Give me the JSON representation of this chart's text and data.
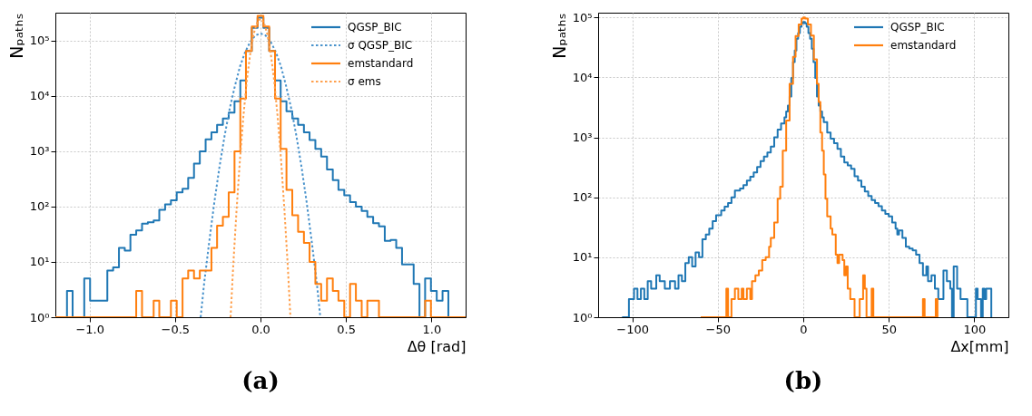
{
  "chart_data": [
    {
      "type": "histogram",
      "title": "(a)",
      "xlabel": "Δθ  [rad]",
      "ylabel": "Nₚₐₜₕₛ",
      "log": true,
      "grid": true,
      "legend": "top right",
      "xlim": [
        -1.2,
        1.2
      ],
      "xticks": [
        {
          "value": -1,
          "label": "−1.0"
        },
        {
          "value": -0.5,
          "label": "−0.5"
        },
        {
          "value": 0,
          "label": "0.0"
        },
        0.5,
        {
          "value": 1,
          "label": "1.0"
        }
      ],
      "ylim": [
        1,
        320000
      ],
      "yticks": [
        {
          "value": 1,
          "label": "10⁰"
        },
        {
          "value": 10,
          "label": "10¹"
        },
        {
          "value": 100,
          "label": "10²"
        },
        {
          "value": 1000,
          "label": "10³"
        },
        {
          "value": 10000,
          "label": "10⁴"
        },
        {
          "value": 100000,
          "label": "10⁵"
        }
      ],
      "bins": [
        -1.2,
        -1.166,
        -1.132,
        -1.099,
        -1.065,
        -1.031,
        -0.997,
        -0.963,
        -0.93,
        -0.896,
        -0.862,
        -0.828,
        -0.794,
        -0.761,
        -0.727,
        -0.693,
        -0.659,
        -0.625,
        -0.592,
        -0.558,
        -0.524,
        -0.49,
        -0.456,
        -0.423,
        -0.389,
        -0.355,
        -0.321,
        -0.287,
        -0.254,
        -0.22,
        -0.186,
        -0.152,
        -0.118,
        -0.085,
        -0.051,
        -0.017,
        0.017,
        0.051,
        0.085,
        0.118,
        0.152,
        0.186,
        0.22,
        0.254,
        0.287,
        0.321,
        0.355,
        0.389,
        0.423,
        0.456,
        0.49,
        0.524,
        0.558,
        0.592,
        0.625,
        0.659,
        0.693,
        0.727,
        0.761,
        0.794,
        0.828,
        0.862,
        0.896,
        0.93,
        0.963,
        0.997,
        1.031,
        1.065,
        1.099,
        1.132,
        1.166,
        1.2
      ],
      "series": [
        {
          "name": "QGSP_BIC",
          "color": "#1f77b4",
          "values": [
            null,
            null,
            3,
            null,
            null,
            5,
            2,
            2,
            2,
            7,
            8,
            18,
            16,
            31,
            37,
            49,
            52,
            56,
            87,
            110,
            130,
            180,
            210,
            330,
            600,
            1000,
            1650,
            2200,
            3000,
            3900,
            5000,
            8000,
            19000,
            65000,
            170000,
            260000,
            170000,
            65000,
            19000,
            8000,
            5300,
            3900,
            3000,
            2200,
            1600,
            1100,
            800,
            470,
            300,
            200,
            160,
            120,
            100,
            83,
            65,
            50,
            44,
            24,
            25,
            18,
            9,
            9,
            4,
            null,
            5,
            3,
            2,
            3,
            null,
            null,
            null
          ]
        },
        {
          "name": "σ QGSP_BIC",
          "type": "line",
          "line_style": "dotted",
          "color": "#4a93cc",
          "x": [
            -0.35,
            -0.33,
            -0.3,
            -0.27,
            -0.24,
            -0.21,
            -0.18,
            -0.15,
            -0.12,
            -0.09,
            -0.06,
            -0.03,
            0,
            0.03,
            0.06,
            0.09,
            0.12,
            0.15,
            0.18,
            0.21,
            0.24,
            0.27,
            0.3,
            0.33,
            0.35
          ],
          "values": [
            1,
            4,
            23,
            120,
            520,
            1900,
            5900,
            15000,
            34000,
            62000,
            95000,
            124000,
            135000,
            124000,
            95000,
            62000,
            34000,
            15000,
            5900,
            1900,
            520,
            120,
            23,
            4,
            1
          ]
        },
        {
          "name": "emstandard",
          "color": "#ff7f0e",
          "values": [
            null,
            null,
            null,
            null,
            null,
            null,
            null,
            null,
            null,
            null,
            null,
            null,
            null,
            null,
            3,
            null,
            null,
            2,
            null,
            null,
            2,
            null,
            5,
            7,
            5,
            7,
            7,
            18,
            45,
            65,
            180,
            1000,
            9000,
            65000,
            180000,
            280000,
            180000,
            65000,
            9000,
            1100,
            200,
            70,
            35,
            22,
            10,
            4,
            2,
            5,
            3,
            2,
            null,
            4,
            2,
            null,
            2,
            2,
            null,
            null,
            null,
            null,
            null,
            null,
            null,
            null,
            2,
            null,
            null,
            null,
            null,
            null,
            null
          ]
        },
        {
          "name": "σ ems",
          "type": "line",
          "line_style": "dotted",
          "color": "#ffa04d",
          "x": [
            -0.175,
            -0.16,
            -0.14,
            -0.12,
            -0.1,
            -0.08,
            -0.06,
            -0.04,
            -0.02,
            0,
            0.02,
            0.04,
            0.06,
            0.08,
            0.1,
            0.12,
            0.14,
            0.16,
            0.175
          ],
          "values": [
            1,
            8,
            87,
            720,
            4300,
            19000,
            58000,
            131000,
            212000,
            250000,
            212000,
            131000,
            58000,
            19000,
            4300,
            720,
            87,
            8,
            1
          ]
        }
      ]
    },
    {
      "type": "step",
      "title": "(b)",
      "xlabel": "Δx[mm]",
      "ylabel": "Nₚₐₜₕₛ",
      "log": true,
      "grid": true,
      "legend": "top right",
      "xlim": [
        -120,
        120
      ],
      "xticks": [
        {
          "value": -100,
          "label": "−100"
        },
        {
          "value": -50,
          "label": "−50"
        },
        0,
        50,
        100
      ],
      "ylim": [
        1,
        120000
      ],
      "yticks": [
        {
          "value": 1,
          "label": "10⁰"
        },
        {
          "value": 10,
          "label": "10¹"
        },
        {
          "value": 100,
          "label": "10²"
        },
        {
          "value": 1000,
          "label": "10³"
        },
        {
          "value": 10000,
          "label": "10⁴"
        },
        {
          "value": 100000,
          "label": "10⁵"
        }
      ],
      "series": [
        {
          "name": "QGSP_BIC",
          "color": "#1f77b4",
          "x": [
            -106,
            -102,
            -99,
            -97,
            -95,
            -93,
            -91,
            -89,
            -86,
            -84,
            -81,
            -78,
            -75,
            -73,
            -71,
            -69,
            -67,
            -65,
            -63,
            -61,
            -59,
            -57,
            -55,
            -53,
            -51,
            -48,
            -46,
            -44,
            -42,
            -40,
            -37,
            -35,
            -33,
            -31,
            -29,
            -27,
            -25,
            -23,
            -21,
            -19,
            -17,
            -15,
            -13,
            -11,
            -10,
            -9,
            -8,
            -7,
            -6,
            -5,
            -4,
            -3,
            -2,
            -1,
            0,
            1,
            2,
            3,
            4,
            5,
            6,
            7,
            8,
            9,
            10,
            11,
            12,
            14,
            16,
            18,
            20,
            22,
            24,
            26,
            28,
            30,
            32,
            34,
            36,
            38,
            40,
            42,
            44,
            46,
            48,
            50,
            52,
            54,
            55,
            56,
            58,
            60,
            62,
            64,
            66,
            68,
            70,
            72,
            73,
            75,
            77,
            79,
            82,
            84,
            86,
            87,
            88,
            90,
            92,
            96,
            101,
            102,
            104,
            105,
            106,
            107,
            110
          ],
          "values": [
            1,
            2,
            3,
            2,
            3,
            2,
            4,
            3,
            5,
            4,
            3,
            4,
            3,
            5,
            4,
            8,
            10,
            7,
            12,
            10,
            20,
            24,
            30,
            40,
            50,
            60,
            70,
            80,
            100,
            130,
            140,
            160,
            190,
            220,
            260,
            320,
            400,
            480,
            560,
            700,
            1000,
            1350,
            1700,
            2150,
            2700,
            3400,
            4800,
            9800,
            18000,
            28000,
            44000,
            55000,
            70000,
            80000,
            84000,
            80000,
            70000,
            55000,
            44000,
            30000,
            18000,
            9800,
            4800,
            3400,
            2700,
            2150,
            1800,
            1200,
            950,
            800,
            640,
            480,
            380,
            340,
            300,
            225,
            190,
            150,
            125,
            105,
            90,
            80,
            71,
            60,
            53,
            48,
            38,
            30,
            24,
            28,
            21,
            15,
            14,
            13,
            11,
            8,
            5,
            7,
            4,
            5,
            3,
            2,
            6,
            4,
            3,
            1,
            7,
            3,
            2,
            1,
            3,
            2,
            1,
            3,
            2,
            3,
            1
          ]
        },
        {
          "name": "emstandard",
          "color": "#ff7f0e",
          "x": [
            -60,
            -45,
            -44,
            -42,
            -40,
            -38,
            -36,
            -35,
            -33,
            -31,
            -30,
            -28,
            -26,
            -24,
            -22,
            -20,
            -19,
            -17,
            -15,
            -13.5,
            -12,
            -10,
            -8,
            -6,
            -4.5,
            -2.7,
            -1,
            0,
            1,
            2.7,
            4.5,
            6.2,
            8,
            9,
            10,
            11,
            12,
            13,
            14,
            16,
            17,
            19,
            20,
            21,
            23,
            24,
            25,
            26,
            27.5,
            30,
            33,
            35,
            36,
            37,
            40,
            41,
            70,
            71,
            77.5,
            78.5
          ],
          "values": [
            1,
            3,
            1,
            2,
            3,
            2,
            3,
            2,
            3,
            2,
            4,
            5,
            6,
            9,
            10,
            15,
            21,
            38,
            95,
            150,
            600,
            1900,
            7800,
            22000,
            49000,
            76000,
            96000,
            100000,
            96000,
            76000,
            50000,
            20000,
            7800,
            3900,
            1200,
            600,
            240,
            95,
            48,
            30,
            24,
            11,
            8,
            11,
            9,
            5,
            7,
            3,
            2,
            1,
            2,
            5,
            3,
            1,
            3,
            1,
            2,
            1,
            2,
            1
          ]
        }
      ]
    }
  ]
}
